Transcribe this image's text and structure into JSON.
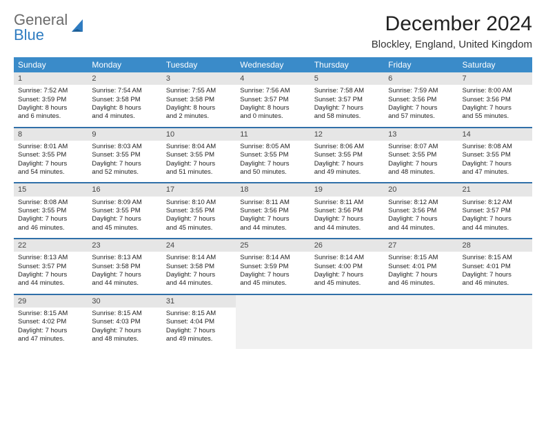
{
  "logo": {
    "gray": "General",
    "blue": "Blue"
  },
  "title": "December 2024",
  "location": "Blockley, England, United Kingdom",
  "colors": {
    "header_bg": "#3a8bc9",
    "rule": "#2f6fa8",
    "daynum_bg": "#e6e6e6",
    "logo_blue": "#2f7cc1"
  },
  "weekdays": [
    "Sunday",
    "Monday",
    "Tuesday",
    "Wednesday",
    "Thursday",
    "Friday",
    "Saturday"
  ],
  "weeks": [
    [
      {
        "n": "1",
        "sr": "Sunrise: 7:52 AM",
        "ss": "Sunset: 3:59 PM",
        "d1": "Daylight: 8 hours",
        "d2": "and 6 minutes."
      },
      {
        "n": "2",
        "sr": "Sunrise: 7:54 AM",
        "ss": "Sunset: 3:58 PM",
        "d1": "Daylight: 8 hours",
        "d2": "and 4 minutes."
      },
      {
        "n": "3",
        "sr": "Sunrise: 7:55 AM",
        "ss": "Sunset: 3:58 PM",
        "d1": "Daylight: 8 hours",
        "d2": "and 2 minutes."
      },
      {
        "n": "4",
        "sr": "Sunrise: 7:56 AM",
        "ss": "Sunset: 3:57 PM",
        "d1": "Daylight: 8 hours",
        "d2": "and 0 minutes."
      },
      {
        "n": "5",
        "sr": "Sunrise: 7:58 AM",
        "ss": "Sunset: 3:57 PM",
        "d1": "Daylight: 7 hours",
        "d2": "and 58 minutes."
      },
      {
        "n": "6",
        "sr": "Sunrise: 7:59 AM",
        "ss": "Sunset: 3:56 PM",
        "d1": "Daylight: 7 hours",
        "d2": "and 57 minutes."
      },
      {
        "n": "7",
        "sr": "Sunrise: 8:00 AM",
        "ss": "Sunset: 3:56 PM",
        "d1": "Daylight: 7 hours",
        "d2": "and 55 minutes."
      }
    ],
    [
      {
        "n": "8",
        "sr": "Sunrise: 8:01 AM",
        "ss": "Sunset: 3:55 PM",
        "d1": "Daylight: 7 hours",
        "d2": "and 54 minutes."
      },
      {
        "n": "9",
        "sr": "Sunrise: 8:03 AM",
        "ss": "Sunset: 3:55 PM",
        "d1": "Daylight: 7 hours",
        "d2": "and 52 minutes."
      },
      {
        "n": "10",
        "sr": "Sunrise: 8:04 AM",
        "ss": "Sunset: 3:55 PM",
        "d1": "Daylight: 7 hours",
        "d2": "and 51 minutes."
      },
      {
        "n": "11",
        "sr": "Sunrise: 8:05 AM",
        "ss": "Sunset: 3:55 PM",
        "d1": "Daylight: 7 hours",
        "d2": "and 50 minutes."
      },
      {
        "n": "12",
        "sr": "Sunrise: 8:06 AM",
        "ss": "Sunset: 3:55 PM",
        "d1": "Daylight: 7 hours",
        "d2": "and 49 minutes."
      },
      {
        "n": "13",
        "sr": "Sunrise: 8:07 AM",
        "ss": "Sunset: 3:55 PM",
        "d1": "Daylight: 7 hours",
        "d2": "and 48 minutes."
      },
      {
        "n": "14",
        "sr": "Sunrise: 8:08 AM",
        "ss": "Sunset: 3:55 PM",
        "d1": "Daylight: 7 hours",
        "d2": "and 47 minutes."
      }
    ],
    [
      {
        "n": "15",
        "sr": "Sunrise: 8:08 AM",
        "ss": "Sunset: 3:55 PM",
        "d1": "Daylight: 7 hours",
        "d2": "and 46 minutes."
      },
      {
        "n": "16",
        "sr": "Sunrise: 8:09 AM",
        "ss": "Sunset: 3:55 PM",
        "d1": "Daylight: 7 hours",
        "d2": "and 45 minutes."
      },
      {
        "n": "17",
        "sr": "Sunrise: 8:10 AM",
        "ss": "Sunset: 3:55 PM",
        "d1": "Daylight: 7 hours",
        "d2": "and 45 minutes."
      },
      {
        "n": "18",
        "sr": "Sunrise: 8:11 AM",
        "ss": "Sunset: 3:56 PM",
        "d1": "Daylight: 7 hours",
        "d2": "and 44 minutes."
      },
      {
        "n": "19",
        "sr": "Sunrise: 8:11 AM",
        "ss": "Sunset: 3:56 PM",
        "d1": "Daylight: 7 hours",
        "d2": "and 44 minutes."
      },
      {
        "n": "20",
        "sr": "Sunrise: 8:12 AM",
        "ss": "Sunset: 3:56 PM",
        "d1": "Daylight: 7 hours",
        "d2": "and 44 minutes."
      },
      {
        "n": "21",
        "sr": "Sunrise: 8:12 AM",
        "ss": "Sunset: 3:57 PM",
        "d1": "Daylight: 7 hours",
        "d2": "and 44 minutes."
      }
    ],
    [
      {
        "n": "22",
        "sr": "Sunrise: 8:13 AM",
        "ss": "Sunset: 3:57 PM",
        "d1": "Daylight: 7 hours",
        "d2": "and 44 minutes."
      },
      {
        "n": "23",
        "sr": "Sunrise: 8:13 AM",
        "ss": "Sunset: 3:58 PM",
        "d1": "Daylight: 7 hours",
        "d2": "and 44 minutes."
      },
      {
        "n": "24",
        "sr": "Sunrise: 8:14 AM",
        "ss": "Sunset: 3:58 PM",
        "d1": "Daylight: 7 hours",
        "d2": "and 44 minutes."
      },
      {
        "n": "25",
        "sr": "Sunrise: 8:14 AM",
        "ss": "Sunset: 3:59 PM",
        "d1": "Daylight: 7 hours",
        "d2": "and 45 minutes."
      },
      {
        "n": "26",
        "sr": "Sunrise: 8:14 AM",
        "ss": "Sunset: 4:00 PM",
        "d1": "Daylight: 7 hours",
        "d2": "and 45 minutes."
      },
      {
        "n": "27",
        "sr": "Sunrise: 8:15 AM",
        "ss": "Sunset: 4:01 PM",
        "d1": "Daylight: 7 hours",
        "d2": "and 46 minutes."
      },
      {
        "n": "28",
        "sr": "Sunrise: 8:15 AM",
        "ss": "Sunset: 4:01 PM",
        "d1": "Daylight: 7 hours",
        "d2": "and 46 minutes."
      }
    ],
    [
      {
        "n": "29",
        "sr": "Sunrise: 8:15 AM",
        "ss": "Sunset: 4:02 PM",
        "d1": "Daylight: 7 hours",
        "d2": "and 47 minutes."
      },
      {
        "n": "30",
        "sr": "Sunrise: 8:15 AM",
        "ss": "Sunset: 4:03 PM",
        "d1": "Daylight: 7 hours",
        "d2": "and 48 minutes."
      },
      {
        "n": "31",
        "sr": "Sunrise: 8:15 AM",
        "ss": "Sunset: 4:04 PM",
        "d1": "Daylight: 7 hours",
        "d2": "and 49 minutes."
      },
      null,
      null,
      null,
      null
    ]
  ]
}
